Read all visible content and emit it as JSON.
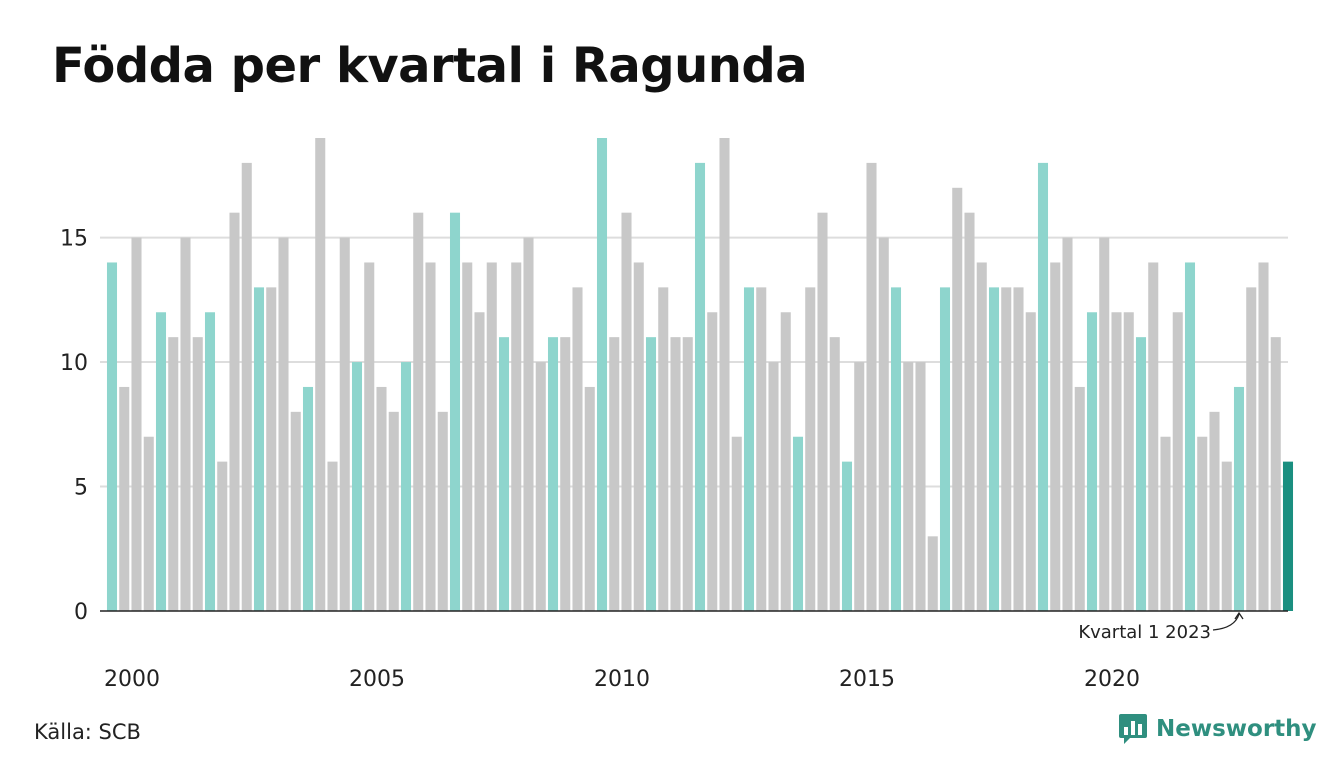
{
  "title": "Födda per kvartal i Ragunda",
  "source": "Källa: SCB",
  "brand": {
    "name": "Newsworthy",
    "icon": "bar-chart-speech-icon"
  },
  "colors": {
    "q1": "#8ed5cd",
    "other": "#c8c8c8",
    "latest": "#1a8f80",
    "grid": "#dddddd",
    "axis": "#222222",
    "brand": "#2f8f7f"
  },
  "chart_data": {
    "type": "bar",
    "title": "Födda per kvartal i Ragunda",
    "start_year": 2000,
    "values": [
      14,
      9,
      15,
      7,
      12,
      11,
      15,
      11,
      12,
      6,
      16,
      18,
      13,
      13,
      15,
      8,
      9,
      19,
      6,
      15,
      10,
      14,
      9,
      8,
      10,
      16,
      14,
      8,
      16,
      14,
      12,
      14,
      11,
      14,
      15,
      10,
      11,
      11,
      13,
      9,
      19,
      11,
      16,
      14,
      11,
      13,
      11,
      11,
      18,
      12,
      19,
      7,
      13,
      13,
      10,
      12,
      7,
      13,
      16,
      11,
      6,
      10,
      18,
      15,
      13,
      10,
      10,
      3,
      13,
      17,
      16,
      14,
      13,
      13,
      13,
      12,
      18,
      14,
      15,
      9,
      12,
      15,
      12,
      12,
      11,
      14,
      7,
      12,
      14,
      7,
      8,
      6,
      9,
      13,
      14,
      11,
      6
    ],
    "ylim": [
      0,
      19
    ],
    "yticks": [
      0,
      5,
      10,
      15
    ],
    "xticks": [
      "2000",
      "2005",
      "2010",
      "2015",
      "2020"
    ],
    "grid": true,
    "highlight": "quarter 1 bars in teal, latest bar in dark teal",
    "annotation": {
      "text": "Kvartal 1 2023",
      "target": "Q1 2023"
    }
  }
}
